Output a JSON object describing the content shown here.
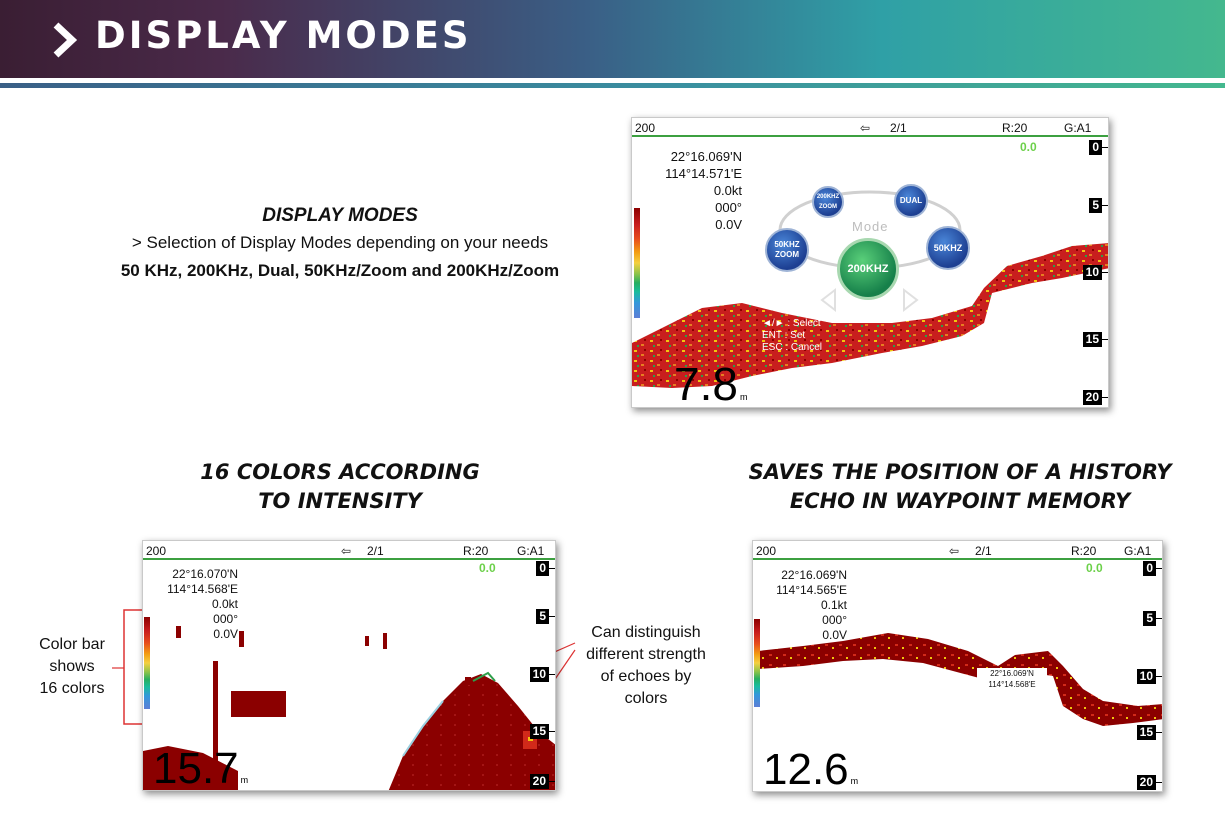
{
  "header": {
    "title": "DISPLAY MODES"
  },
  "intro": {
    "title": "DISPLAY MODES",
    "line": "> Selection of Display Modes depending on your needs",
    "modes": "50 KHz, 200KHz, Dual, 50KHz/Zoom and 200KHz/Zoom"
  },
  "captions": {
    "colors_l1": "16 COLORS ACCORDING",
    "colors_l2": "TO INTENSITY",
    "history_l1": "SAVES THE POSITION OF A HISTORY",
    "history_l2": "ECHO IN WAYPOINT MEMORY"
  },
  "notes": {
    "color_bar_l1": "Color bar",
    "color_bar_l2": "shows",
    "color_bar_l3": "16 colors",
    "strength_l1": "Can distinguish",
    "strength_l2": "different strength",
    "strength_l3": "of echoes by",
    "strength_l4": "colors"
  },
  "screen_top": {
    "freq": "200",
    "page": "2/1",
    "range": "R:20",
    "gain": "G:A1",
    "gain_value": "0.0",
    "lat": "22°16.069'N",
    "lon": "114°14.571'E",
    "speed": "0.0kt",
    "heading": "000°",
    "voltage": "0.0V",
    "depth": "7.8",
    "depth_unit": "m",
    "depth_ticks": [
      "0",
      "5",
      "10",
      "15",
      "20"
    ],
    "mode_menu": {
      "label": "Mode",
      "options": [
        "200KHZ ZOOM",
        "DUAL",
        "50KHZ ZOOM",
        "50KHZ"
      ],
      "selected": "200KHZ",
      "key_select": "◄/► : Select",
      "key_set": "ENT : Set",
      "key_cancel": "ESC : Cancel"
    }
  },
  "screen_left": {
    "freq": "200",
    "page": "2/1",
    "range": "R:20",
    "gain": "G:A1",
    "gain_value": "0.0",
    "lat": "22°16.070'N",
    "lon": "114°14.568'E",
    "speed": "0.0kt",
    "heading": "000°",
    "voltage": "0.0V",
    "depth": "15.7",
    "depth_unit": "m",
    "depth_ticks": [
      "0",
      "5",
      "10",
      "15",
      "20"
    ]
  },
  "screen_right": {
    "freq": "200",
    "page": "2/1",
    "range": "R:20",
    "gain": "G:A1",
    "gain_value": "0.0",
    "lat": "22°16.069'N",
    "lon": "114°14.565'E",
    "speed": "0.1kt",
    "heading": "000°",
    "voltage": "0.0V",
    "depth": "12.6",
    "depth_unit": "m",
    "depth_ticks": [
      "0",
      "5",
      "10",
      "15",
      "20"
    ],
    "waypoint_lat": "22°16.069'N",
    "waypoint_lon": "114°14.568'E"
  },
  "colors": {
    "echo_dark": "#8b0000",
    "echo_red": "#d12a1a",
    "echo_yellow": "#f1c40f",
    "echo_green": "#2e9e4a",
    "accent_green": "#3ca040"
  }
}
